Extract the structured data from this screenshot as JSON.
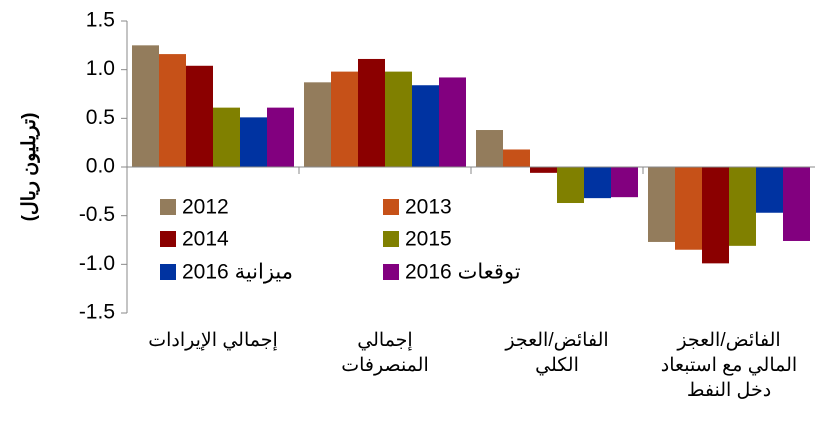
{
  "chart_data": {
    "type": "bar",
    "y_label": "(تريليون ريال)",
    "categories": [
      "إجمالي الإيرادات",
      "إجمالي\nالمنصرفات",
      "الفائض/العجز\nالكلي",
      "الفائض/العجز\nالمالي مع استبعاد\nدخل النفط"
    ],
    "series": [
      {
        "name": "2012",
        "color": "#937c5c",
        "values": [
          1.25,
          0.87,
          0.38,
          -0.77
        ]
      },
      {
        "name": "2013",
        "color": "#c65118",
        "values": [
          1.16,
          0.98,
          0.18,
          -0.85
        ]
      },
      {
        "name": "2014",
        "color": "#8b0000",
        "values": [
          1.04,
          1.11,
          -0.06,
          -0.99
        ]
      },
      {
        "name": "2015",
        "color": "#808000",
        "values": [
          0.61,
          0.98,
          -0.37,
          -0.81
        ]
      },
      {
        "name": "2016 ميزانية",
        "color": "#0033a1",
        "values": [
          0.51,
          0.84,
          -0.32,
          -0.47
        ]
      },
      {
        "name": "2016 توقعات",
        "color": "#82007f",
        "values": [
          0.61,
          0.92,
          -0.31,
          -0.76
        ]
      }
    ],
    "ylim": [
      -1.5,
      1.5
    ],
    "yticks": [
      -1.5,
      {
        "value": -1,
        "label": "-1.0"
      },
      -0.5,
      {
        "value": 0,
        "label": "0.0"
      },
      0.5,
      {
        "value": 1,
        "label": "1.0"
      },
      1.5
    ],
    "legend": "inside-lower-left"
  }
}
